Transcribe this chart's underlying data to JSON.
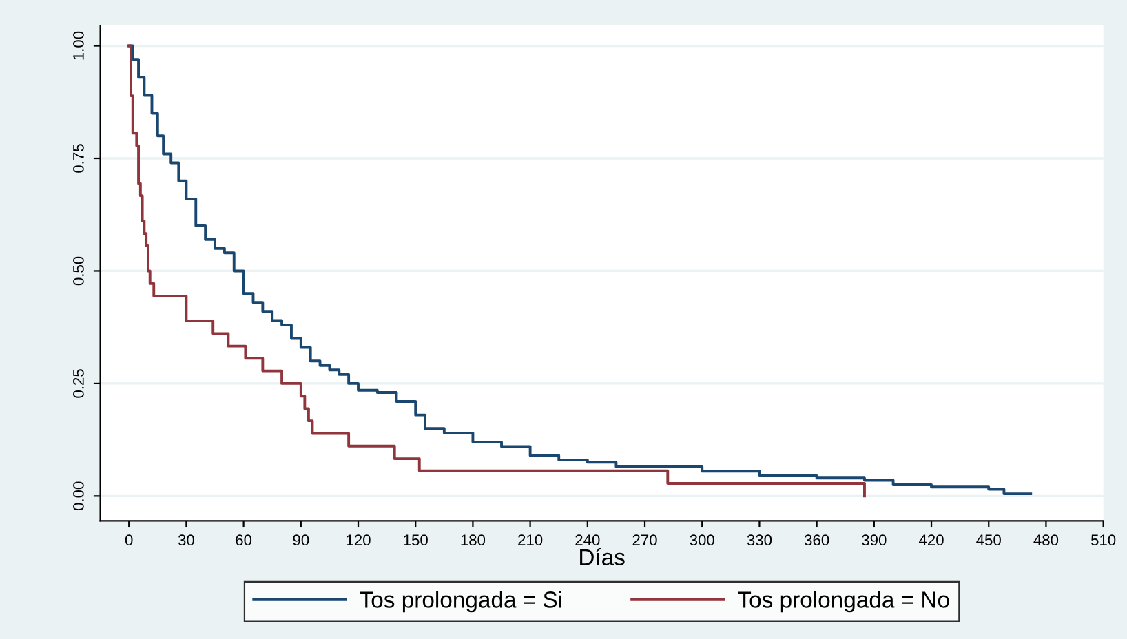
{
  "chart_data": {
    "type": "step",
    "xlabel": "Días",
    "legend": "bottom",
    "grid": "y",
    "xlim": [
      -15,
      510
    ],
    "ylim": [
      -0.055,
      1.045
    ],
    "xticks": [
      0,
      30,
      60,
      90,
      120,
      150,
      180,
      210,
      240,
      270,
      300,
      330,
      360,
      390,
      420,
      450,
      480,
      510
    ],
    "yticks": [
      {
        "value": 0,
        "label": "0.00"
      },
      {
        "value": 0.25,
        "label": "0.25"
      },
      {
        "value": 0.5,
        "label": "0.50"
      },
      {
        "value": 0.75,
        "label": "0.75"
      },
      {
        "value": 1,
        "label": "1.00"
      }
    ],
    "series": [
      {
        "name": "Tos prolongada = Si",
        "color": "#1a476f",
        "x": [
          0,
          2,
          5,
          8,
          12,
          15,
          18,
          22,
          26,
          30,
          35,
          40,
          45,
          50,
          55,
          60,
          65,
          70,
          75,
          80,
          85,
          90,
          95,
          100,
          105,
          110,
          115,
          120,
          130,
          140,
          150,
          155,
          165,
          180,
          195,
          210,
          225,
          240,
          255,
          270,
          300,
          330,
          360,
          385,
          400,
          420,
          450,
          458,
          472
        ],
        "values": [
          1.0,
          0.97,
          0.93,
          0.89,
          0.85,
          0.8,
          0.76,
          0.74,
          0.7,
          0.66,
          0.6,
          0.57,
          0.55,
          0.54,
          0.5,
          0.45,
          0.43,
          0.41,
          0.39,
          0.38,
          0.35,
          0.33,
          0.3,
          0.29,
          0.28,
          0.27,
          0.25,
          0.235,
          0.23,
          0.21,
          0.18,
          0.15,
          0.14,
          0.12,
          0.11,
          0.09,
          0.08,
          0.075,
          0.065,
          0.065,
          0.055,
          0.045,
          0.04,
          0.035,
          0.025,
          0.02,
          0.015,
          0.005,
          0.005
        ]
      },
      {
        "name": "Tos prolongada = No",
        "color": "#90353b",
        "x": [
          0,
          1,
          2,
          4,
          5,
          6,
          7,
          8,
          9,
          10,
          11,
          13,
          30,
          44,
          52,
          61,
          70,
          80,
          90,
          92,
          94,
          96,
          115,
          139,
          152,
          282,
          385
        ],
        "values": [
          1.0,
          0.889,
          0.806,
          0.778,
          0.694,
          0.667,
          0.611,
          0.583,
          0.556,
          0.5,
          0.472,
          0.444,
          0.389,
          0.361,
          0.333,
          0.306,
          0.278,
          0.25,
          0.222,
          0.194,
          0.167,
          0.139,
          0.111,
          0.083,
          0.056,
          0.028,
          0.0
        ]
      }
    ]
  }
}
